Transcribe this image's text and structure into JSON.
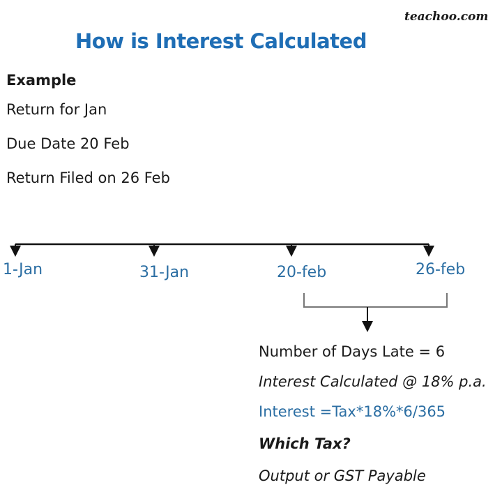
{
  "logo": "teachoo.com",
  "title": "How is Interest Calculated",
  "example": {
    "heading": "Example",
    "lines": [
      "Return for Jan",
      "Due Date 20 Feb",
      "Return Filed on 26 Feb"
    ]
  },
  "timeline": {
    "dates": [
      "1-Jan",
      "31-Jan",
      "20-feb",
      "26-feb"
    ]
  },
  "result": {
    "days_late": "Number of Days Late = 6",
    "rate": "Interest Calculated @ 18% p.a.",
    "formula": "Interest =Tax*18%*6/365",
    "question": "Which Tax?",
    "answer": "Output or GST Payable"
  },
  "colors": {
    "accent": "#1f6eb5",
    "label": "#2b6ea3"
  }
}
